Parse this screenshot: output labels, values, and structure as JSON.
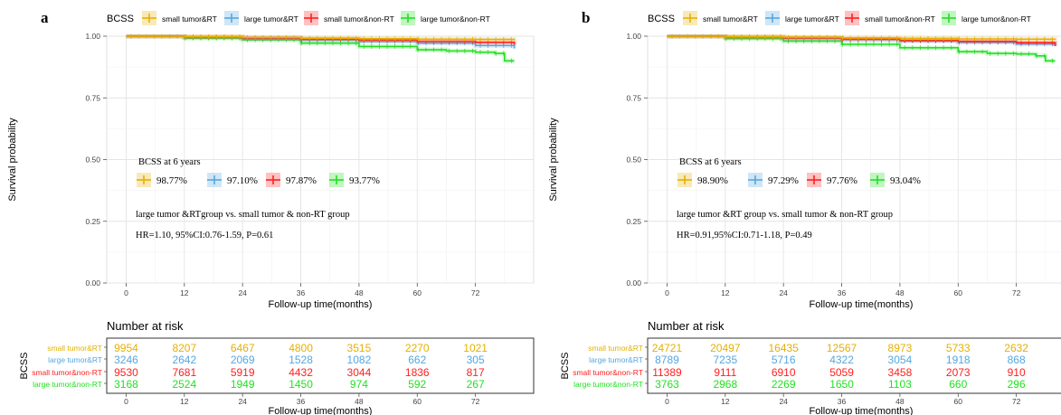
{
  "legend_title": "BCSS",
  "y_axis_label": "Survival probability",
  "x_axis_label": "Follow-up time(months)",
  "risk_title": "Number at risk",
  "risk_axis_label": "BCSS",
  "annot_heading": "BCSS at 6 years",
  "colors": {
    "small tumor&RT": "#e6b000",
    "large tumor&RT": "#55a7e0",
    "small tumor&non-RT": "#ff2020",
    "large tumor&non-RT": "#22e022"
  },
  "chart_data": [
    {
      "panel_label": "a",
      "type": "line",
      "xlabel": "Follow-up time(months)",
      "ylabel": "Survival probability",
      "xlim": [
        -4,
        84
      ],
      "ylim": [
        0,
        1
      ],
      "xticks": [
        0,
        12,
        24,
        36,
        48,
        60,
        72
      ],
      "yticks": [
        "0.00",
        "0.25",
        "0.50",
        "0.75",
        "1.00"
      ],
      "grid": true,
      "legend_position": "top",
      "series": [
        {
          "name": "small tumor&RT",
          "x": [
            0,
            12,
            24,
            36,
            48,
            60,
            72,
            80
          ],
          "y": [
            1.0,
            0.998,
            0.995,
            0.992,
            0.99,
            0.988,
            0.987,
            0.983
          ]
        },
        {
          "name": "large tumor&RT",
          "x": [
            0,
            12,
            24,
            36,
            48,
            60,
            72,
            80
          ],
          "y": [
            1.0,
            0.995,
            0.99,
            0.985,
            0.978,
            0.972,
            0.962,
            0.95
          ]
        },
        {
          "name": "small tumor&non-RT",
          "x": [
            0,
            12,
            24,
            36,
            48,
            60,
            72,
            80
          ],
          "y": [
            1.0,
            0.997,
            0.993,
            0.988,
            0.984,
            0.979,
            0.975,
            0.965
          ]
        },
        {
          "name": "large tumor&non-RT",
          "x": [
            0,
            12,
            24,
            36,
            48,
            60,
            66,
            72,
            76,
            78,
            80
          ],
          "y": [
            1.0,
            0.992,
            0.985,
            0.972,
            0.958,
            0.945,
            0.94,
            0.935,
            0.93,
            0.9,
            0.9
          ]
        }
      ],
      "six_year_values": [
        "98.77%",
        "97.10%",
        "97.87%",
        "93.77%"
      ],
      "comparison_text": "large tumor &RTgroup vs. small tumor & non-RT group",
      "hr_text": "HR=1.10, 95%CI:0.76-1.59, P=0.61",
      "risk_table": {
        "times": [
          0,
          12,
          24,
          36,
          48,
          60,
          72
        ],
        "rows": [
          {
            "name": "small tumor&RT",
            "values": [
              9954,
              8207,
              6467,
              4800,
              3515,
              2270,
              1021
            ]
          },
          {
            "name": "large tumor&RT",
            "values": [
              3246,
              2642,
              2069,
              1528,
              1082,
              662,
              305
            ]
          },
          {
            "name": "small tumor&non-RT",
            "values": [
              9530,
              7681,
              5919,
              4432,
              3044,
              1836,
              817
            ]
          },
          {
            "name": "large tumor&non-RT",
            "values": [
              3168,
              2524,
              1949,
              1450,
              974,
              592,
              267
            ]
          }
        ]
      }
    },
    {
      "panel_label": "b",
      "type": "line",
      "xlabel": "Follow-up time(months)",
      "ylabel": "Survival probability",
      "xlim": [
        -4,
        84
      ],
      "ylim": [
        0,
        1
      ],
      "xticks": [
        0,
        12,
        24,
        36,
        48,
        60,
        72
      ],
      "yticks": [
        "0.00",
        "0.25",
        "0.50",
        "0.75",
        "1.00"
      ],
      "grid": true,
      "legend_position": "top",
      "series": [
        {
          "name": "small tumor&RT",
          "x": [
            0,
            12,
            24,
            36,
            48,
            60,
            72,
            80
          ],
          "y": [
            1.0,
            0.998,
            0.996,
            0.993,
            0.991,
            0.989,
            0.988,
            0.985
          ]
        },
        {
          "name": "large tumor&RT",
          "x": [
            0,
            12,
            24,
            36,
            48,
            60,
            72,
            80
          ],
          "y": [
            1.0,
            0.996,
            0.991,
            0.986,
            0.98,
            0.975,
            0.968,
            0.96
          ]
        },
        {
          "name": "small tumor&non-RT",
          "x": [
            0,
            12,
            24,
            36,
            48,
            60,
            72,
            80
          ],
          "y": [
            1.0,
            0.997,
            0.993,
            0.988,
            0.983,
            0.979,
            0.974,
            0.96
          ]
        },
        {
          "name": "large tumor&non-RT",
          "x": [
            0,
            12,
            24,
            36,
            48,
            60,
            66,
            72,
            76,
            78,
            80
          ],
          "y": [
            1.0,
            0.99,
            0.98,
            0.967,
            0.953,
            0.937,
            0.93,
            0.928,
            0.92,
            0.9,
            0.9
          ]
        }
      ],
      "six_year_values": [
        "98.90%",
        "97.29%",
        "97.76%",
        "93.04%"
      ],
      "comparison_text": "large tumor &RT group vs. small tumor & non-RT group",
      "hr_text": "HR=0.91,95%CI:0.71-1.18, P=0.49",
      "risk_table": {
        "times": [
          0,
          12,
          24,
          36,
          48,
          60,
          72
        ],
        "rows": [
          {
            "name": "small tumor&RT",
            "values": [
              24721,
              20497,
              16435,
              12567,
              8973,
              5733,
              2632
            ]
          },
          {
            "name": "large tumor&RT",
            "values": [
              8789,
              7235,
              5716,
              4322,
              3054,
              1918,
              868
            ]
          },
          {
            "name": "small tumor&non-RT",
            "values": [
              11389,
              9111,
              6910,
              5059,
              3458,
              2073,
              910
            ]
          },
          {
            "name": "large tumor&non-RT",
            "values": [
              3763,
              2968,
              2269,
              1650,
              1103,
              660,
              296
            ]
          }
        ]
      }
    }
  ]
}
